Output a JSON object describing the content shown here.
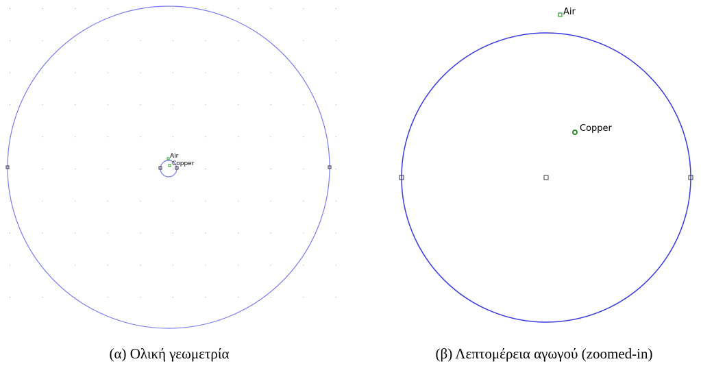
{
  "panels": [
    {
      "labels": {
        "air": "Air",
        "copper": "Copper"
      },
      "caption": "(α) Ολική γεωμετρία"
    },
    {
      "labels": {
        "air": "Air",
        "copper": "Copper"
      },
      "caption": "(β) Λεπτομέρεια αγωγού (zoomed-in)"
    }
  ]
}
